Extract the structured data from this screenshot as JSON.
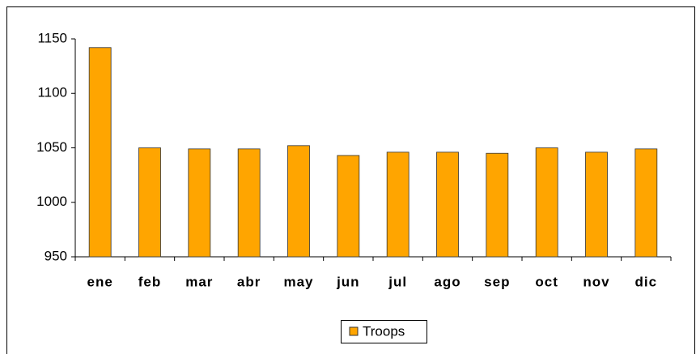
{
  "chart_data": {
    "type": "bar",
    "categories": [
      "ene",
      "feb",
      "mar",
      "abr",
      "may",
      "jun",
      "jul",
      "ago",
      "sep",
      "oct",
      "nov",
      "dic"
    ],
    "series": [
      {
        "name": "Troops",
        "color": "#ffa500",
        "values": [
          1142,
          1050,
          1049,
          1049,
          1052,
          1043,
          1046,
          1046,
          1045,
          1050,
          1046,
          1049
        ]
      }
    ],
    "ylim": [
      950,
      1150
    ],
    "yticks": [
      950,
      1000,
      1050,
      1100,
      1150
    ],
    "grid": false,
    "legend": "bottom"
  }
}
